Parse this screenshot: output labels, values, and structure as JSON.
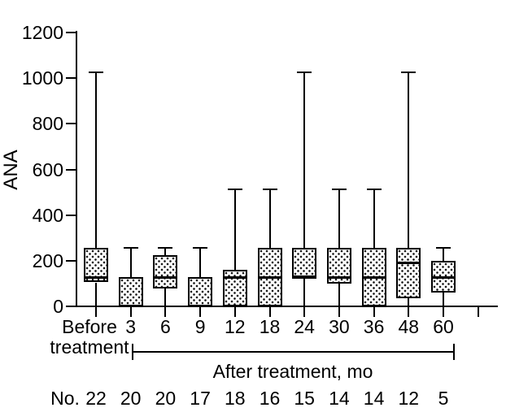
{
  "figure": {
    "background": "#ffffff",
    "line_color": "#000000"
  },
  "chart_data": {
    "type": "box",
    "title": "",
    "ylabel": "ANA",
    "xlabel_group": "After treatment, mo",
    "ylim": [
      0,
      1200
    ],
    "yticks": [
      0,
      200,
      400,
      600,
      800,
      1000,
      1200
    ],
    "grid": "off",
    "legend": "none",
    "categories": [
      "Before treatment",
      "3",
      "6",
      "9",
      "12",
      "18",
      "24",
      "30",
      "36",
      "48",
      "60"
    ],
    "category_label_lines": [
      [
        "Before",
        "treatment"
      ],
      [
        "3"
      ],
      [
        "6"
      ],
      [
        "9"
      ],
      [
        "12"
      ],
      [
        "18"
      ],
      [
        "24"
      ],
      [
        "30"
      ],
      [
        "36"
      ],
      [
        "48"
      ],
      [
        "60"
      ]
    ],
    "boxes": [
      {
        "label": "Before treatment",
        "whisker_high": 1024,
        "q3": 256,
        "median": 128,
        "q1": 105,
        "whisker_low": 0
      },
      {
        "label": "3",
        "whisker_high": 256,
        "q3": 128,
        "median": null,
        "q1": 0,
        "whisker_low": 0
      },
      {
        "label": "6",
        "whisker_high": 256,
        "q3": 225,
        "median": 128,
        "q1": 80,
        "whisker_low": 0
      },
      {
        "label": "9",
        "whisker_high": 256,
        "q3": 128,
        "median": null,
        "q1": 0,
        "whisker_low": 0
      },
      {
        "label": "12",
        "whisker_high": 512,
        "q3": 160,
        "median": 128,
        "q1": 0,
        "whisker_low": 0
      },
      {
        "label": "18",
        "whisker_high": 512,
        "q3": 256,
        "median": 128,
        "q1": 0,
        "whisker_low": 0
      },
      {
        "label": "24",
        "whisker_high": 1024,
        "q3": 256,
        "median": 128,
        "q1": 128,
        "whisker_low": 0
      },
      {
        "label": "30",
        "whisker_high": 512,
        "q3": 256,
        "median": 128,
        "q1": 100,
        "whisker_low": 0
      },
      {
        "label": "36",
        "whisker_high": 512,
        "q3": 256,
        "median": 128,
        "q1": 0,
        "whisker_low": 0
      },
      {
        "label": "48",
        "whisker_high": 1024,
        "q3": 256,
        "median": 192,
        "q1": 35,
        "whisker_low": 0
      },
      {
        "label": "60",
        "whisker_high": 256,
        "q3": 200,
        "median": 128,
        "q1": 60,
        "whisker_low": 0
      }
    ],
    "counts_row": {
      "prefix": "No.",
      "values": [
        22,
        20,
        20,
        17,
        18,
        16,
        15,
        14,
        14,
        12,
        5
      ]
    }
  }
}
